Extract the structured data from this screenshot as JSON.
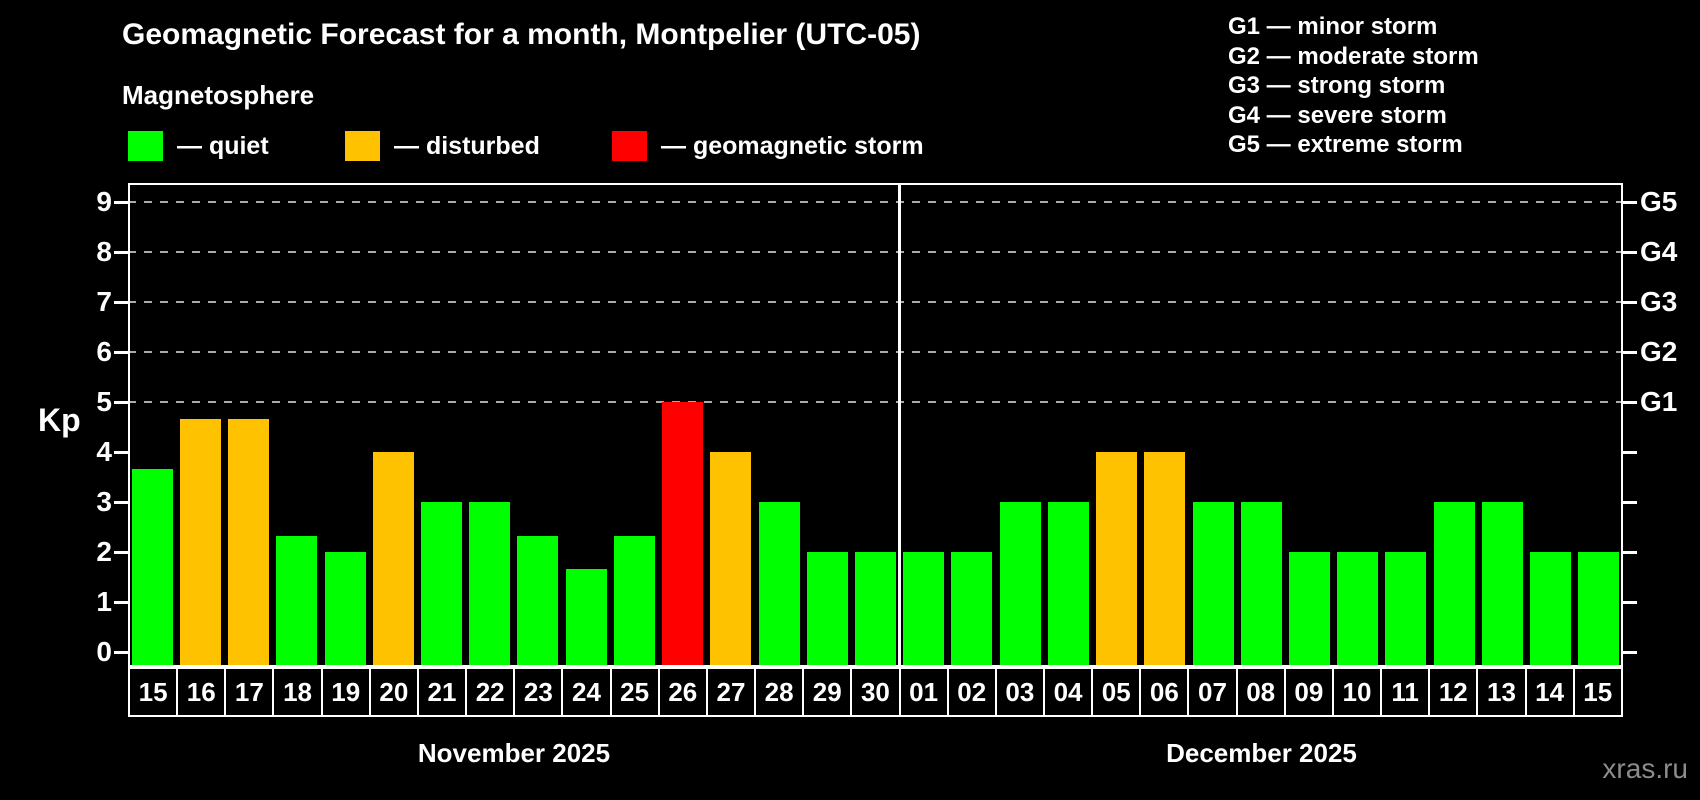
{
  "title": "Geomagnetic Forecast for a month, Montpelier (UTC-05)",
  "subtitle": "Magnetosphere",
  "legend": {
    "quiet_label": "— quiet",
    "disturbed_label": "— disturbed",
    "storm_label": "— geomagnetic storm"
  },
  "legend_g": {
    "items": [
      "G1 — minor storm",
      "G2 — moderate storm",
      "G3 — strong storm",
      "G4 — severe storm",
      "G5 — extreme storm"
    ]
  },
  "watermark": "xras.ru",
  "colors": {
    "quiet": "#00ff00",
    "disturbed": "#ffc200",
    "storm": "#ff0000",
    "background": "#000000",
    "grid": "#aaaaaa",
    "axis": "#ffffff",
    "watermark": "#8c8c8c"
  },
  "chart_data": {
    "type": "bar",
    "ylabel": "Kp",
    "ylim": [
      0,
      9
    ],
    "y_ticks": [
      0,
      1,
      2,
      3,
      4,
      5,
      6,
      7,
      8,
      9
    ],
    "gridlines_kp": [
      5,
      6,
      7,
      8,
      9
    ],
    "right_axis_labels": [
      {
        "label": "G1",
        "kp": 5
      },
      {
        "label": "G2",
        "kp": 6
      },
      {
        "label": "G3",
        "kp": 7
      },
      {
        "label": "G4",
        "kp": 8
      },
      {
        "label": "G5",
        "kp": 9
      }
    ],
    "categories": [
      "15",
      "16",
      "17",
      "18",
      "19",
      "20",
      "21",
      "22",
      "23",
      "24",
      "25",
      "26",
      "27",
      "28",
      "29",
      "30",
      "01",
      "02",
      "03",
      "04",
      "05",
      "06",
      "07",
      "08",
      "09",
      "10",
      "11",
      "12",
      "13",
      "14",
      "15"
    ],
    "values": [
      3.67,
      4.67,
      4.67,
      2.33,
      2,
      4,
      3,
      3,
      2.33,
      1.67,
      2.33,
      5,
      4,
      3,
      2,
      2,
      2,
      2,
      3,
      3,
      4,
      4,
      3,
      3,
      2,
      2,
      2,
      3,
      3,
      2,
      2
    ],
    "statuses": [
      "quiet",
      "disturbed",
      "disturbed",
      "quiet",
      "quiet",
      "disturbed",
      "quiet",
      "quiet",
      "quiet",
      "quiet",
      "quiet",
      "storm",
      "disturbed",
      "quiet",
      "quiet",
      "quiet",
      "quiet",
      "quiet",
      "quiet",
      "quiet",
      "disturbed",
      "disturbed",
      "quiet",
      "quiet",
      "quiet",
      "quiet",
      "quiet",
      "quiet",
      "quiet",
      "quiet",
      "quiet"
    ],
    "months": [
      {
        "label": "November 2025",
        "start": 0,
        "count": 16
      },
      {
        "label": "December 2025",
        "start": 16,
        "count": 15
      }
    ],
    "separator_after_index": 15
  }
}
